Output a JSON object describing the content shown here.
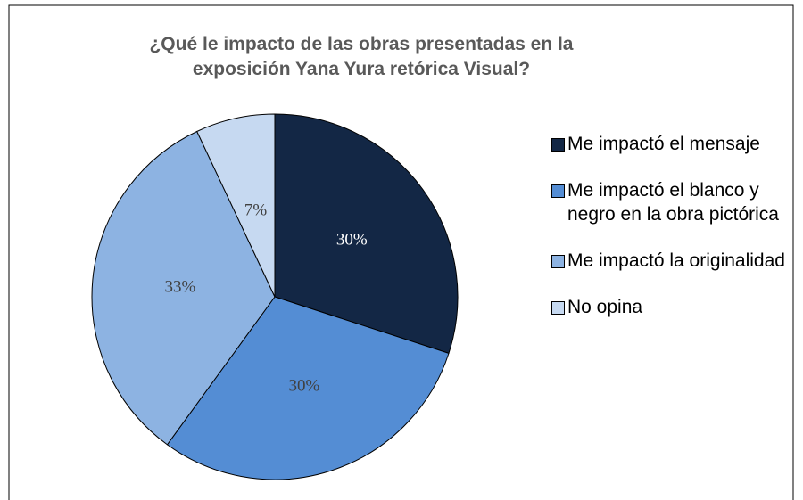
{
  "chart_data": {
    "type": "pie",
    "title": "¿Qué le impacto de las obras presentadas en la exposición Yana Yura retórica Visual?",
    "categories": [
      "Me impactó el mensaje",
      "Me impactó el blanco y negro en la obra pictórica",
      "Me impactó la originalidad",
      "No opina"
    ],
    "values": [
      30,
      30,
      33,
      7
    ],
    "value_labels": [
      "30%",
      "30%",
      "33%",
      "7%"
    ],
    "colors": [
      "#132745",
      "#548dd4",
      "#8db3e2",
      "#c6d9f1"
    ],
    "legend": "right"
  }
}
